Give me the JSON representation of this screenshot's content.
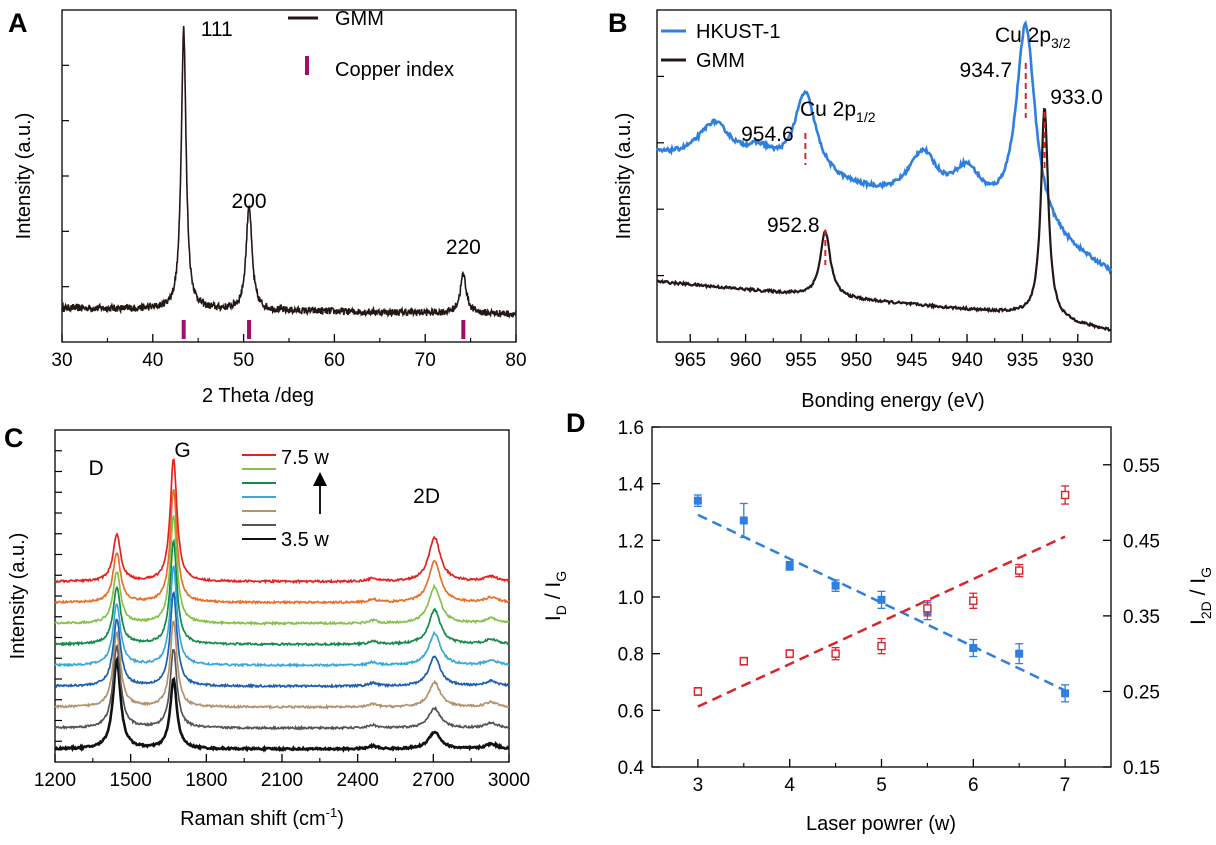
{
  "colors": {
    "axis": "#000000",
    "gmm": "#231815",
    "hkust": "#2f7fdf",
    "copper_index": "#a0106a",
    "dash_red": "#d9262b",
    "blue_axis": "#1f6fd0",
    "red_axis": "#e0201a",
    "raman": [
      "#111111",
      "#555555",
      "#b3936e",
      "#1b5fb0",
      "#3aa8d8",
      "#158a4a",
      "#86c24a",
      "#e8702a",
      "#e52222"
    ]
  },
  "chart_data": [
    {
      "panel": "A",
      "type": "line",
      "xlabel": "2 Theta /deg",
      "ylabel": "Intensity (a.u.)",
      "xlim": [
        30,
        80
      ],
      "xticks": [
        "30",
        "40",
        "50",
        "60",
        "70",
        "80"
      ],
      "legend": [
        {
          "label": "GMM",
          "kind": "line"
        },
        {
          "label": "Copper index",
          "kind": "bar"
        }
      ],
      "series": [
        {
          "name": "GMM",
          "background": 0.04,
          "noise": 0.012,
          "peaks": [
            {
              "x": 43.4,
              "h": 0.94,
              "w": 0.32
            },
            {
              "x": 50.6,
              "h": 0.35,
              "w": 0.38
            },
            {
              "x": 74.2,
              "h": 0.13,
              "w": 0.4
            }
          ]
        }
      ],
      "reference_positions": [
        43.4,
        50.6,
        74.2
      ],
      "annotations": [
        {
          "text": "111",
          "x": 43.4
        },
        {
          "text": "200",
          "x": 50.6
        },
        {
          "text": "220",
          "x": 74.2
        }
      ]
    },
    {
      "panel": "B",
      "type": "line",
      "xlabel": "Bonding energy (eV)",
      "ylabel": "Intensity (a.u.)",
      "xlim": [
        968,
        927
      ],
      "xticks": [
        "965",
        "960",
        "955",
        "950",
        "945",
        "940",
        "935",
        "930"
      ],
      "legend": [
        {
          "label": "HKUST-1"
        },
        {
          "label": "GMM"
        }
      ],
      "series": [
        {
          "name": "HKUST-1",
          "noise": 0.006,
          "baseline": [
            [
              968,
              0.54
            ],
            [
              955,
              0.47
            ],
            [
              945,
              0.39
            ],
            [
              935,
              0.32
            ],
            [
              927,
              0.18
            ]
          ],
          "peaks": [
            {
              "x": 962.8,
              "h": 0.12,
              "w": 1.8
            },
            {
              "x": 958.8,
              "h": 0.05,
              "w": 1.6
            },
            {
              "x": 954.6,
              "h": 0.25,
              "w": 1.2
            },
            {
              "x": 944,
              "h": 0.15,
              "w": 1.6
            },
            {
              "x": 940,
              "h": 0.12,
              "w": 1.6
            },
            {
              "x": 934.7,
              "h": 0.61,
              "w": 1.05
            }
          ]
        },
        {
          "name": "GMM",
          "noise": 0.004,
          "baseline": [
            [
              968,
              0.16
            ],
            [
              952,
              0.11
            ],
            [
              935,
              0.06
            ],
            [
              927,
              0.01
            ]
          ],
          "peaks": [
            {
              "x": 952.8,
              "h": 0.2,
              "w": 0.55
            },
            {
              "x": 933.0,
              "h": 0.64,
              "w": 0.4
            }
          ]
        }
      ],
      "annotations": [
        {
          "text": "954.6",
          "x": 954.6
        },
        {
          "text": "952.8",
          "x": 952.8
        },
        {
          "text": "934.7",
          "x": 934.7
        },
        {
          "text": "933.0",
          "x": 933.0
        }
      ],
      "labels": {
        "cu_prefix": "Cu 2p",
        "sub_half": "1/2",
        "sub_three_half": "3/2"
      }
    },
    {
      "panel": "C",
      "type": "line",
      "xlabel": "Raman shift (cm",
      "xlabel_sup": "-1",
      "xlabel_end": ")",
      "ylabel": "Intensity (a.u.)",
      "xlim": [
        1200,
        3000
      ],
      "xticks": [
        "1200",
        "1500",
        "1800",
        "2100",
        "2400",
        "2700",
        "3000"
      ],
      "legend_top": "7.5 w",
      "legend_bottom": "3.5 w",
      "peak_labels": [
        {
          "text": "D",
          "x": 1450
        },
        {
          "text": "G",
          "x": 1690
        },
        {
          "text": "2D",
          "x": 2705
        }
      ],
      "series_count": 9,
      "power_range": [
        3.5,
        7.5
      ],
      "peak_positions": {
        "D": 1445,
        "G": 1670,
        "2D": 2705
      },
      "offset_step": 0.085,
      "d_peak_height": [
        0.36,
        0.33,
        0.3,
        0.27,
        0.25,
        0.23,
        0.21,
        0.2,
        0.19
      ],
      "g_peak_height": [
        0.28,
        0.32,
        0.35,
        0.38,
        0.4,
        0.42,
        0.44,
        0.46,
        0.5
      ],
      "twod_peak_height": [
        0.07,
        0.08,
        0.1,
        0.12,
        0.13,
        0.14,
        0.15,
        0.17,
        0.18
      ]
    },
    {
      "panel": "D",
      "type": "scatter",
      "xlabel": "Laser powrer (w)",
      "xlim": [
        2.5,
        7.5
      ],
      "xticks": [
        "3",
        "4",
        "5",
        "6",
        "7"
      ],
      "left_axis": {
        "label_main": "I",
        "label_sub1": "D",
        "label_sep": " / I",
        "label_sub2": "G",
        "ylim": [
          0.4,
          1.6
        ],
        "yticks": [
          "0.4",
          "0.6",
          "0.8",
          "1.0",
          "1.2",
          "1.4",
          "1.6"
        ]
      },
      "right_axis": {
        "label_main": "I",
        "label_sub1": "2D",
        "label_sep": " / I",
        "label_sub2": "G",
        "ylim": [
          0.15,
          0.6
        ],
        "yticks": [
          "0.15",
          "0.25",
          "0.35",
          "0.45",
          "0.55"
        ]
      },
      "x": [
        3,
        3.5,
        4,
        4.5,
        5,
        5.5,
        6,
        6.5,
        7
      ],
      "series": [
        {
          "name": "ID/IG",
          "axis": "left",
          "marker": "filled-square",
          "values": [
            1.34,
            1.27,
            1.11,
            1.04,
            0.99,
            0.95,
            0.82,
            0.8,
            0.66
          ],
          "errors": [
            0.02,
            0.06,
            0.015,
            0.02,
            0.03,
            0.03,
            0.03,
            0.035,
            0.03
          ],
          "fit": [
            [
              3,
              1.29
            ],
            [
              7,
              0.67
            ]
          ]
        },
        {
          "name": "I2D/IG",
          "axis": "right",
          "marker": "open-square",
          "values": [
            0.25,
            0.29,
            0.3,
            0.3,
            0.31,
            0.36,
            0.37,
            0.41,
            0.51
          ],
          "errors": [
            0.005,
            0.005,
            0.005,
            0.008,
            0.01,
            0.01,
            0.01,
            0.008,
            0.012
          ],
          "fit": [
            [
              3,
              0.23
            ],
            [
              7,
              0.455
            ]
          ]
        }
      ]
    }
  ]
}
